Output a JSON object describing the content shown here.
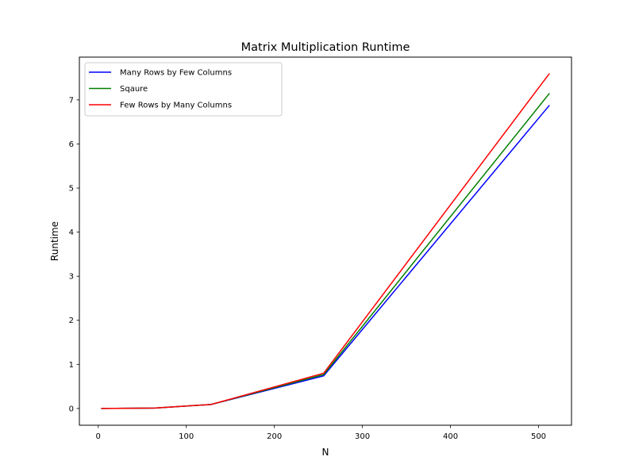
{
  "chart_data": {
    "type": "line",
    "title": "Matrix Multiplication Runtime",
    "xlabel": "N",
    "ylabel": "Runtime",
    "x": [
      4,
      64,
      128,
      256,
      512
    ],
    "series": [
      {
        "name": "Many Rows by Few Columns",
        "color": "#0000ff",
        "values": [
          0.0,
          0.01,
          0.09,
          0.74,
          6.87
        ]
      },
      {
        "name": "Sqaure",
        "color": "#008000",
        "values": [
          0.0,
          0.01,
          0.09,
          0.77,
          7.14
        ]
      },
      {
        "name": "Few Rows by Many Columns",
        "color": "#ff0000",
        "values": [
          0.0,
          0.01,
          0.09,
          0.8,
          7.59
        ]
      }
    ],
    "xlim": [
      -21.4,
      537.4
    ],
    "ylim": [
      -0.38,
      7.97
    ],
    "xticks": [
      {
        "value": 0,
        "label": "0"
      },
      {
        "value": 100,
        "label": "100"
      },
      {
        "value": 200,
        "label": "200"
      },
      {
        "value": 300,
        "label": "300"
      },
      {
        "value": 400,
        "label": "400"
      },
      {
        "value": 500,
        "label": "500"
      }
    ],
    "yticks": [
      {
        "value": 0,
        "label": "0"
      },
      {
        "value": 1,
        "label": "1"
      },
      {
        "value": 2,
        "label": "2"
      },
      {
        "value": 3,
        "label": "3"
      },
      {
        "value": 4,
        "label": "4"
      },
      {
        "value": 5,
        "label": "5"
      },
      {
        "value": 6,
        "label": "6"
      },
      {
        "value": 7,
        "label": "7"
      }
    ],
    "grid": false,
    "legend_position": "upper-left"
  }
}
